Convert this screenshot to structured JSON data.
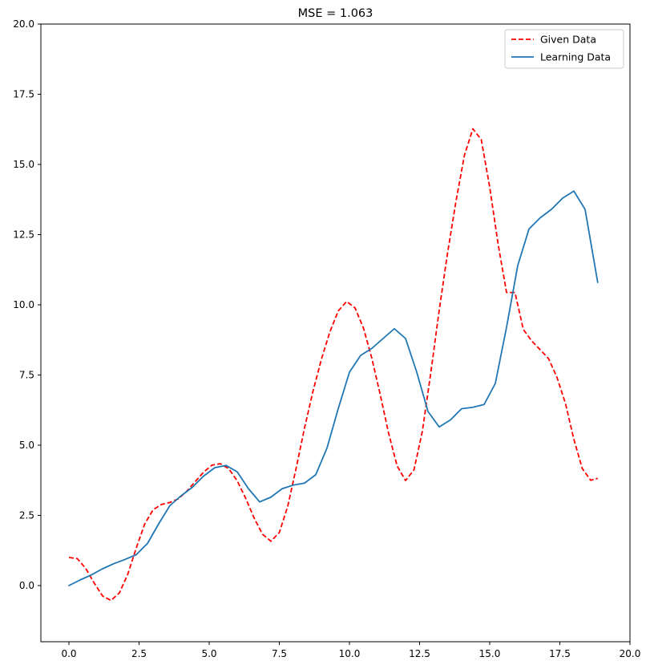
{
  "chart_data": {
    "type": "line",
    "title": "MSE = 1.063",
    "xlabel": "",
    "ylabel": "",
    "xlim": [
      -1,
      20
    ],
    "ylim": [
      -2,
      20
    ],
    "x_ticks": [
      0.0,
      2.5,
      5.0,
      7.5,
      10.0,
      12.5,
      15.0,
      17.5,
      20.0
    ],
    "x_tick_labels": [
      "0.0",
      "2.5",
      "5.0",
      "7.5",
      "10.0",
      "12.5",
      "15.0",
      "17.5",
      "20.0"
    ],
    "y_ticks": [
      0.0,
      2.5,
      5.0,
      7.5,
      10.0,
      12.5,
      15.0,
      17.5,
      20.0
    ],
    "y_tick_labels": [
      "0.0",
      "2.5",
      "5.0",
      "7.5",
      "10.0",
      "12.5",
      "15.0",
      "17.5",
      "20.0"
    ],
    "grid": false,
    "legend_position": "top-right",
    "series": [
      {
        "name": "Given Data",
        "color": "#ff0000",
        "style": "dashed",
        "x": [
          0.0,
          0.3,
          0.6,
          0.9,
          1.2,
          1.5,
          1.8,
          2.1,
          2.4,
          2.7,
          3.0,
          3.3,
          3.6,
          3.9,
          4.2,
          4.5,
          4.8,
          5.1,
          5.4,
          5.7,
          6.0,
          6.3,
          6.6,
          6.9,
          7.2,
          7.5,
          7.8,
          8.1,
          8.4,
          8.7,
          9.0,
          9.3,
          9.6,
          9.9,
          10.2,
          10.5,
          10.8,
          11.1,
          11.4,
          11.7,
          12.0,
          12.3,
          12.6,
          12.9,
          13.2,
          13.5,
          13.8,
          14.1,
          14.4,
          14.7,
          15.0,
          15.3,
          15.6,
          15.9,
          16.2,
          16.5,
          16.8,
          17.1,
          17.4,
          17.7,
          18.0,
          18.3,
          18.6,
          18.85
        ],
        "y": [
          1.0,
          0.96,
          0.61,
          0.09,
          -0.37,
          -0.53,
          -0.26,
          0.41,
          1.34,
          2.19,
          2.7,
          2.89,
          2.96,
          3.09,
          3.36,
          3.7,
          4.04,
          4.29,
          4.34,
          4.16,
          3.73,
          3.11,
          2.41,
          1.83,
          1.58,
          1.89,
          2.82,
          4.18,
          5.62,
          6.92,
          8.06,
          9.03,
          9.78,
          10.12,
          9.89,
          9.17,
          8.09,
          6.79,
          5.41,
          4.26,
          3.74,
          4.12,
          5.5,
          7.58,
          9.81,
          11.86,
          13.7,
          15.33,
          16.27,
          15.88,
          14.19,
          12.16,
          10.44,
          10.44,
          9.12,
          8.71,
          8.4,
          8.08,
          7.41,
          6.49,
          5.21,
          4.17,
          3.75,
          3.82
        ],
        "x_plot": [
          0.0,
          0.3,
          0.6,
          0.9,
          1.2,
          1.5,
          1.8,
          2.1,
          2.4,
          2.7,
          3.0,
          3.3,
          3.6,
          3.9,
          4.2,
          4.5,
          4.8,
          5.1,
          5.4,
          5.7,
          6.0,
          6.3,
          6.6,
          6.9,
          7.2,
          7.5,
          7.8,
          8.1,
          8.4,
          8.7,
          9.0,
          9.3,
          9.6,
          9.9,
          10.2,
          10.5,
          10.8,
          11.1,
          11.4,
          11.7,
          12.0,
          12.3,
          12.6,
          12.9,
          13.2,
          13.5,
          13.8,
          14.1,
          14.4,
          14.7,
          15.0,
          15.3,
          15.6,
          15.9,
          16.2,
          16.5,
          16.8,
          17.1,
          17.4,
          17.7,
          18.0,
          18.3,
          18.6,
          18.85
        ]
      },
      {
        "name": "Learning Data",
        "color": "#1f77b4",
        "style": "solid",
        "x": [
          0.0,
          0.4,
          0.8,
          1.2,
          1.6,
          2.0,
          2.4,
          2.8,
          3.2,
          3.6,
          4.0,
          4.4,
          4.8,
          5.2,
          5.6,
          6.0,
          6.4,
          6.8,
          7.2,
          7.6,
          8.0,
          8.4,
          8.8,
          9.2,
          9.6,
          10.0,
          10.4,
          10.8,
          11.2,
          11.6,
          12.0,
          12.4,
          12.8,
          13.2,
          13.6,
          14.0,
          14.4,
          14.8,
          15.2,
          15.6,
          16.0,
          16.4,
          16.8,
          17.2,
          17.6,
          18.0,
          18.4,
          18.85
        ],
        "y": [
          0.0,
          0.2,
          0.38,
          0.6,
          0.78,
          0.93,
          1.1,
          1.5,
          2.2,
          2.85,
          3.2,
          3.5,
          3.9,
          4.2,
          4.28,
          4.05,
          3.45,
          2.98,
          3.15,
          3.45,
          3.58,
          3.65,
          3.95,
          4.9,
          6.3,
          7.6,
          8.2,
          8.45,
          8.8,
          9.15,
          8.8,
          7.6,
          6.2,
          5.65,
          5.9,
          6.3,
          6.35,
          6.45,
          7.2,
          9.2,
          11.4,
          12.7,
          13.1,
          13.4,
          13.8,
          14.05,
          13.4,
          10.8
        ]
      }
    ]
  }
}
